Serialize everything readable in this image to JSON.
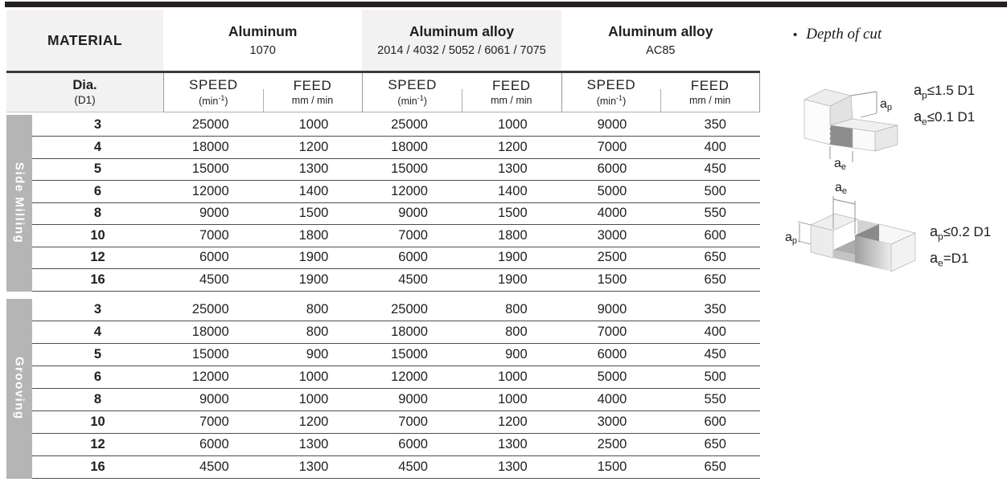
{
  "table": {
    "material_header": "MATERIAL",
    "groups": [
      {
        "title": "Aluminum",
        "subtitle": "1070"
      },
      {
        "title": "Aluminum alloy",
        "subtitle": "2014 / 4032 / 5052 / 6061 / 7075"
      },
      {
        "title": "Aluminum alloy",
        "subtitle": "AC85"
      }
    ],
    "dia": {
      "label": "Dia.",
      "sub": "(D1)"
    },
    "col_headers": {
      "speed_label": "SPEED",
      "speed_unit_pre": "(min",
      "speed_unit_sup": "-1",
      "speed_unit_post": ")",
      "feed_label": "FEED",
      "feed_unit": "mm / min"
    },
    "sections": [
      {
        "label": "Side Milling",
        "rows": [
          [
            "3",
            "25000",
            "1000",
            "25000",
            "1000",
            "9000",
            "350"
          ],
          [
            "4",
            "18000",
            "1200",
            "18000",
            "1200",
            "7000",
            "400"
          ],
          [
            "5",
            "15000",
            "1300",
            "15000",
            "1300",
            "6000",
            "450"
          ],
          [
            "6",
            "12000",
            "1400",
            "12000",
            "1400",
            "5000",
            "500"
          ],
          [
            "8",
            "9000",
            "1500",
            "9000",
            "1500",
            "4000",
            "550"
          ],
          [
            "10",
            "7000",
            "1800",
            "7000",
            "1800",
            "3000",
            "600"
          ],
          [
            "12",
            "6000",
            "1900",
            "6000",
            "1900",
            "2500",
            "650"
          ],
          [
            "16",
            "4500",
            "1900",
            "4500",
            "1900",
            "1500",
            "650"
          ]
        ]
      },
      {
        "label": "Grooving",
        "rows": [
          [
            "3",
            "25000",
            "800",
            "25000",
            "800",
            "9000",
            "350"
          ],
          [
            "4",
            "18000",
            "800",
            "18000",
            "800",
            "7000",
            "400"
          ],
          [
            "5",
            "15000",
            "900",
            "15000",
            "900",
            "6000",
            "450"
          ],
          [
            "6",
            "12000",
            "1000",
            "12000",
            "1000",
            "5000",
            "500"
          ],
          [
            "8",
            "9000",
            "1000",
            "9000",
            "1000",
            "4000",
            "550"
          ],
          [
            "10",
            "7000",
            "1200",
            "7000",
            "1200",
            "3000",
            "600"
          ],
          [
            "12",
            "6000",
            "1300",
            "6000",
            "1300",
            "2500",
            "650"
          ],
          [
            "16",
            "4500",
            "1300",
            "4500",
            "1300",
            "1500",
            "650"
          ]
        ]
      }
    ]
  },
  "notes": {
    "bullet": "•",
    "title": "Depth of cut",
    "side_milling": {
      "line1": {
        "base": "a",
        "sub": "p",
        "rest": "≤1.5 D1"
      },
      "line2": {
        "base": "a",
        "sub": "e",
        "rest": "≤0.1 D1"
      },
      "dim_ap": {
        "base": "a",
        "sub": "p"
      },
      "dim_ae": {
        "base": "a",
        "sub": "e"
      }
    },
    "grooving": {
      "line1": {
        "base": "a",
        "sub": "p",
        "rest": "≤0.2 D1"
      },
      "line2": {
        "base": "a",
        "sub": "e",
        "rest": "=D1"
      },
      "dim_ap": {
        "base": "a",
        "sub": "p"
      },
      "dim_ae": {
        "base": "a",
        "sub": "e"
      }
    }
  }
}
